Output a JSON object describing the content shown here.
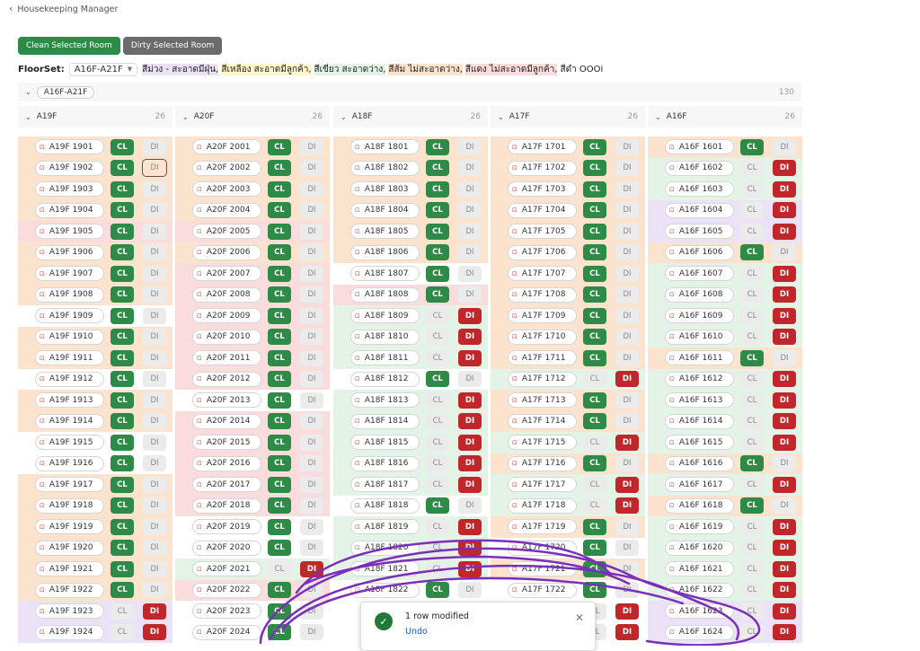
{
  "header": {
    "back_label": "Housekeeping Manager"
  },
  "actions": {
    "clean_label": "Clean Selected Room",
    "dirty_label": "Dirty Selected Room"
  },
  "floorset": {
    "label": "FloorSet:",
    "value": "A16F-A21F",
    "legend": [
      {
        "text": "สีม่วง - สะอาดมีฝุ่น,",
        "bg": "#ece2f7"
      },
      {
        "text": "สีเหลือง สะอาดมีลูกค้า,",
        "bg": "#fff6cc"
      },
      {
        "text": "สีเขียว สะอาดว่าง,",
        "bg": "#e3f4e6"
      },
      {
        "text": "สีส้ม ไม่สะอาดว่าง,",
        "bg": "#fbe3cd"
      },
      {
        "text": "สีแดง ไม่สะอาดมีลูกค้า,",
        "bg": "#fbdcdc"
      },
      {
        "text": "สีดำ OOOi",
        "bg": "#ffffff"
      }
    ]
  },
  "group": {
    "name": "A16F-A21F",
    "count": "130"
  },
  "cl_label": "CL",
  "di_label": "DI",
  "colors": {
    "orange": "#fbe3cd",
    "red": "#fbdcdc",
    "green": "#e3f4e6",
    "purple": "#ece2f7",
    "white": "#ffffff"
  },
  "columns": [
    {
      "name": "A19F",
      "count": "26",
      "rows": [
        {
          "room": "A19F 1901",
          "status": "CL",
          "bg": "orange"
        },
        {
          "room": "A19F 1902",
          "status": "CL",
          "bg": "orange",
          "focus": true
        },
        {
          "room": "A19F 1903",
          "status": "CL",
          "bg": "orange"
        },
        {
          "room": "A19F 1904",
          "status": "CL",
          "bg": "orange"
        },
        {
          "room": "A19F 1905",
          "status": "CL",
          "bg": "red"
        },
        {
          "room": "A19F 1906",
          "status": "CL",
          "bg": "orange"
        },
        {
          "room": "A19F 1907",
          "status": "CL",
          "bg": "orange"
        },
        {
          "room": "A19F 1908",
          "status": "CL",
          "bg": "orange"
        },
        {
          "room": "A19F 1909",
          "status": "CL",
          "bg": "white"
        },
        {
          "room": "A19F 1910",
          "status": "CL",
          "bg": "orange"
        },
        {
          "room": "A19F 1911",
          "status": "CL",
          "bg": "orange"
        },
        {
          "room": "A19F 1912",
          "status": "CL",
          "bg": "white"
        },
        {
          "room": "A19F 1913",
          "status": "CL",
          "bg": "orange"
        },
        {
          "room": "A19F 1914",
          "status": "CL",
          "bg": "orange"
        },
        {
          "room": "A19F 1915",
          "status": "CL",
          "bg": "white"
        },
        {
          "room": "A19F 1916",
          "status": "CL",
          "bg": "white"
        },
        {
          "room": "A19F 1917",
          "status": "CL",
          "bg": "orange"
        },
        {
          "room": "A19F 1918",
          "status": "CL",
          "bg": "orange"
        },
        {
          "room": "A19F 1919",
          "status": "CL",
          "bg": "orange"
        },
        {
          "room": "A19F 1920",
          "status": "CL",
          "bg": "orange"
        },
        {
          "room": "A19F 1921",
          "status": "CL",
          "bg": "orange"
        },
        {
          "room": "A19F 1922",
          "status": "CL",
          "bg": "orange"
        },
        {
          "room": "A19F 1923",
          "status": "DI",
          "bg": "purple"
        },
        {
          "room": "A19F 1924",
          "status": "DI",
          "bg": "purple"
        }
      ]
    },
    {
      "name": "A20F",
      "count": "26",
      "rows": [
        {
          "room": "A20F 2001",
          "status": "CL",
          "bg": "orange"
        },
        {
          "room": "A20F 2002",
          "status": "CL",
          "bg": "orange"
        },
        {
          "room": "A20F 2003",
          "status": "CL",
          "bg": "orange"
        },
        {
          "room": "A20F 2004",
          "status": "CL",
          "bg": "orange"
        },
        {
          "room": "A20F 2005",
          "status": "CL",
          "bg": "red"
        },
        {
          "room": "A20F 2006",
          "status": "CL",
          "bg": "orange"
        },
        {
          "room": "A20F 2007",
          "status": "CL",
          "bg": "red"
        },
        {
          "room": "A20F 2008",
          "status": "CL",
          "bg": "red"
        },
        {
          "room": "A20F 2009",
          "status": "CL",
          "bg": "red"
        },
        {
          "room": "A20F 2010",
          "status": "CL",
          "bg": "red"
        },
        {
          "room": "A20F 2011",
          "status": "CL",
          "bg": "red"
        },
        {
          "room": "A20F 2012",
          "status": "CL",
          "bg": "red"
        },
        {
          "room": "A20F 2013",
          "status": "CL",
          "bg": "white"
        },
        {
          "room": "A20F 2014",
          "status": "CL",
          "bg": "red"
        },
        {
          "room": "A20F 2015",
          "status": "CL",
          "bg": "red"
        },
        {
          "room": "A20F 2016",
          "status": "CL",
          "bg": "red"
        },
        {
          "room": "A20F 2017",
          "status": "CL",
          "bg": "red"
        },
        {
          "room": "A20F 2018",
          "status": "CL",
          "bg": "red"
        },
        {
          "room": "A20F 2019",
          "status": "CL",
          "bg": "white"
        },
        {
          "room": "A20F 2020",
          "status": "CL",
          "bg": "white"
        },
        {
          "room": "A20F 2021",
          "status": "DI",
          "bg": "green"
        },
        {
          "room": "A20F 2022",
          "status": "CL",
          "bg": "red"
        },
        {
          "room": "A20F 2023",
          "status": "CL",
          "bg": "white"
        },
        {
          "room": "A20F 2024",
          "status": "CL",
          "bg": "white"
        }
      ]
    },
    {
      "name": "A18F",
      "count": "26",
      "rows": [
        {
          "room": "A18F 1801",
          "status": "CL",
          "bg": "orange"
        },
        {
          "room": "A18F 1802",
          "status": "CL",
          "bg": "orange"
        },
        {
          "room": "A18F 1803",
          "status": "CL",
          "bg": "orange"
        },
        {
          "room": "A18F 1804",
          "status": "CL",
          "bg": "orange"
        },
        {
          "room": "A18F 1805",
          "status": "CL",
          "bg": "orange"
        },
        {
          "room": "A18F 1806",
          "status": "CL",
          "bg": "orange"
        },
        {
          "room": "A18F 1807",
          "status": "CL",
          "bg": "white"
        },
        {
          "room": "A18F 1808",
          "status": "CL",
          "bg": "red"
        },
        {
          "room": "A18F 1809",
          "status": "DI",
          "bg": "green"
        },
        {
          "room": "A18F 1810",
          "status": "DI",
          "bg": "green"
        },
        {
          "room": "A18F 1811",
          "status": "DI",
          "bg": "green"
        },
        {
          "room": "A18F 1812",
          "status": "CL",
          "bg": "white"
        },
        {
          "room": "A18F 1813",
          "status": "DI",
          "bg": "green"
        },
        {
          "room": "A18F 1814",
          "status": "DI",
          "bg": "green"
        },
        {
          "room": "A18F 1815",
          "status": "DI",
          "bg": "green"
        },
        {
          "room": "A18F 1816",
          "status": "DI",
          "bg": "green"
        },
        {
          "room": "A18F 1817",
          "status": "DI",
          "bg": "green"
        },
        {
          "room": "A18F 1818",
          "status": "CL",
          "bg": "white"
        },
        {
          "room": "A18F 1819",
          "status": "DI",
          "bg": "green"
        },
        {
          "room": "A18F 1820",
          "status": "DI",
          "bg": "green"
        },
        {
          "room": "A18F 1821",
          "status": "DI",
          "bg": "green"
        },
        {
          "room": "A18F 1822",
          "status": "CL",
          "bg": "white"
        },
        {
          "room": "",
          "status": "",
          "bg": "white"
        },
        {
          "room": "",
          "status": "",
          "bg": "white"
        }
      ]
    },
    {
      "name": "A17F",
      "count": "26",
      "rows": [
        {
          "room": "A17F 1701",
          "status": "CL",
          "bg": "orange"
        },
        {
          "room": "A17F 1702",
          "status": "CL",
          "bg": "orange"
        },
        {
          "room": "A17F 1703",
          "status": "CL",
          "bg": "orange"
        },
        {
          "room": "A17F 1704",
          "status": "CL",
          "bg": "orange"
        },
        {
          "room": "A17F 1705",
          "status": "CL",
          "bg": "orange"
        },
        {
          "room": "A17F 1706",
          "status": "CL",
          "bg": "orange"
        },
        {
          "room": "A17F 1707",
          "status": "CL",
          "bg": "orange"
        },
        {
          "room": "A17F 1708",
          "status": "CL",
          "bg": "orange"
        },
        {
          "room": "A17F 1709",
          "status": "CL",
          "bg": "orange"
        },
        {
          "room": "A17F 1710",
          "status": "CL",
          "bg": "orange"
        },
        {
          "room": "A17F 1711",
          "status": "CL",
          "bg": "orange"
        },
        {
          "room": "A17F 1712",
          "status": "DI",
          "bg": "green"
        },
        {
          "room": "A17F 1713",
          "status": "CL",
          "bg": "orange"
        },
        {
          "room": "A17F 1714",
          "status": "CL",
          "bg": "orange"
        },
        {
          "room": "A17F 1715",
          "status": "DI",
          "bg": "green"
        },
        {
          "room": "A17F 1716",
          "status": "CL",
          "bg": "orange"
        },
        {
          "room": "A17F 1717",
          "status": "DI",
          "bg": "green"
        },
        {
          "room": "A17F 1718",
          "status": "DI",
          "bg": "green"
        },
        {
          "room": "A17F 1719",
          "status": "CL",
          "bg": "orange"
        },
        {
          "room": "A17F 1720",
          "status": "CL",
          "bg": "white"
        },
        {
          "room": "A17F 1721",
          "status": "CL",
          "bg": "orange"
        },
        {
          "room": "A17F 1722",
          "status": "CL",
          "bg": "white"
        },
        {
          "room": "",
          "status": "DI",
          "bg": "white"
        },
        {
          "room": "",
          "status": "DI",
          "bg": "white"
        }
      ]
    },
    {
      "name": "A16F",
      "count": "26",
      "rows": [
        {
          "room": "A16F 1601",
          "status": "CL",
          "bg": "orange"
        },
        {
          "room": "A16F 1602",
          "status": "DI",
          "bg": "green"
        },
        {
          "room": "A16F 1603",
          "status": "DI",
          "bg": "green"
        },
        {
          "room": "A16F 1604",
          "status": "DI",
          "bg": "purple"
        },
        {
          "room": "A16F 1605",
          "status": "DI",
          "bg": "purple"
        },
        {
          "room": "A16F 1606",
          "status": "CL",
          "bg": "orange"
        },
        {
          "room": "A16F 1607",
          "status": "DI",
          "bg": "green"
        },
        {
          "room": "A16F 1608",
          "status": "DI",
          "bg": "green"
        },
        {
          "room": "A16F 1609",
          "status": "DI",
          "bg": "green"
        },
        {
          "room": "A16F 1610",
          "status": "DI",
          "bg": "green"
        },
        {
          "room": "A16F 1611",
          "status": "CL",
          "bg": "orange"
        },
        {
          "room": "A16F 1612",
          "status": "DI",
          "bg": "green"
        },
        {
          "room": "A16F 1613",
          "status": "DI",
          "bg": "green"
        },
        {
          "room": "A16F 1614",
          "status": "DI",
          "bg": "green"
        },
        {
          "room": "A16F 1615",
          "status": "DI",
          "bg": "green"
        },
        {
          "room": "A16F 1616",
          "status": "CL",
          "bg": "orange"
        },
        {
          "room": "A16F 1617",
          "status": "DI",
          "bg": "green"
        },
        {
          "room": "A16F 1618",
          "status": "CL",
          "bg": "orange"
        },
        {
          "room": "A16F 1619",
          "status": "DI",
          "bg": "green"
        },
        {
          "room": "A16F 1620",
          "status": "DI",
          "bg": "green"
        },
        {
          "room": "A16F 1621",
          "status": "DI",
          "bg": "green"
        },
        {
          "room": "A16F 1622",
          "status": "DI",
          "bg": "green"
        },
        {
          "room": "A16F 1623",
          "status": "DI",
          "bg": "purple"
        },
        {
          "room": "A16F 1624",
          "status": "DI",
          "bg": "purple"
        }
      ]
    }
  ],
  "toast": {
    "message": "1 row modified",
    "undo_label": "Undo"
  }
}
